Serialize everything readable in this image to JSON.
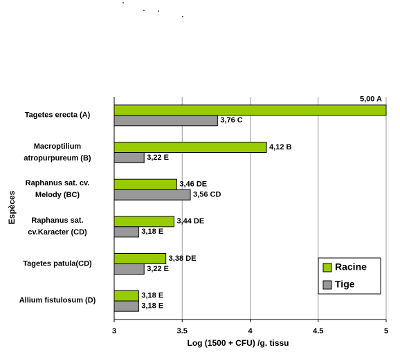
{
  "chart_data": {
    "type": "bar",
    "orientation": "horizontal",
    "x_label": "Log (1500 + CFU) /g. tissu",
    "y_label": "Espèces",
    "categories": [
      "Tagetes erecta (A)",
      "Macroptilium\natropurpureum (B)",
      "Raphanus sat. cv.\nMelody (BC)",
      "Raphanus sat.\ncv.Karacter (CD)",
      "Tagetes patula(CD)",
      "Allium fistulosum (D)"
    ],
    "series": [
      {
        "name": "Racine",
        "color": "#99cc00",
        "values": [
          5.0,
          4.12,
          3.46,
          3.44,
          3.38,
          3.18
        ],
        "value_labels": [
          "5,00 A",
          "4,12 B",
          "3,46 DE",
          "3,44 DE",
          "3,38 DE",
          "3,18 E"
        ]
      },
      {
        "name": "Tige",
        "color": "#999999",
        "values": [
          3.76,
          3.22,
          3.56,
          3.18,
          3.22,
          3.18
        ],
        "value_labels": [
          "3,76 C",
          "3,22 E",
          "3,56 CD",
          "3,18 E",
          "3,22 E",
          "3,18 E"
        ]
      }
    ],
    "xlim": [
      3,
      5
    ],
    "xticks": [
      3,
      3.5,
      4,
      4.5,
      5
    ],
    "grid": true,
    "legend": "lower right"
  }
}
